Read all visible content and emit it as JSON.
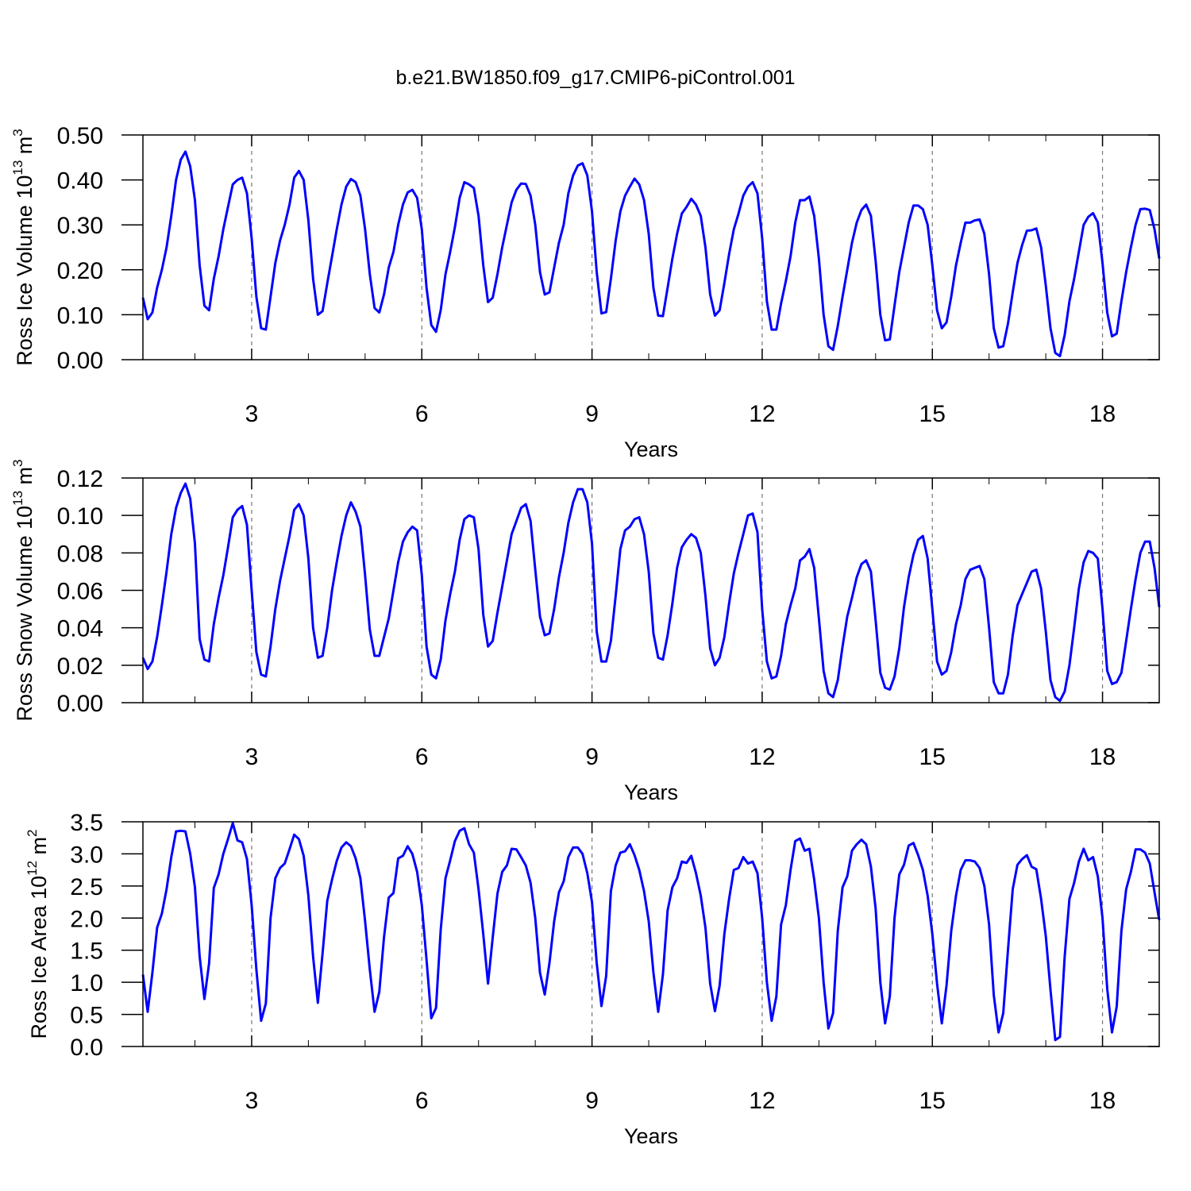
{
  "chart_data": {
    "type": "line",
    "title": "b.e21.BW1850.f09_g17.CMIP6-piControl.001",
    "xlabel": "Years",
    "xlim": [
      1.083,
      19
    ],
    "xticks": [
      3,
      6,
      9,
      12,
      15,
      18
    ],
    "xminorticks": [
      2,
      4,
      5,
      7,
      8,
      10,
      11,
      13,
      14,
      16,
      17
    ],
    "xgrid": "dashed",
    "color": "#0000ff",
    "x": [
      1.083,
      1.167,
      1.25,
      1.333,
      1.417,
      1.5,
      1.583,
      1.667,
      1.75,
      1.833,
      1.917,
      2,
      2.083,
      2.167,
      2.25,
      2.333,
      2.417,
      2.5,
      2.583,
      2.667,
      2.75,
      2.833,
      2.917,
      3,
      3.083,
      3.167,
      3.25,
      3.333,
      3.417,
      3.5,
      3.583,
      3.667,
      3.75,
      3.833,
      3.917,
      4,
      4.083,
      4.167,
      4.25,
      4.333,
      4.417,
      4.5,
      4.583,
      4.667,
      4.75,
      4.833,
      4.917,
      5,
      5.083,
      5.167,
      5.25,
      5.333,
      5.417,
      5.5,
      5.583,
      5.667,
      5.75,
      5.833,
      5.917,
      6,
      6.083,
      6.167,
      6.25,
      6.333,
      6.417,
      6.5,
      6.583,
      6.667,
      6.75,
      6.833,
      6.917,
      7,
      7.083,
      7.167,
      7.25,
      7.333,
      7.417,
      7.5,
      7.583,
      7.667,
      7.75,
      7.833,
      7.917,
      8,
      8.083,
      8.167,
      8.25,
      8.333,
      8.417,
      8.5,
      8.583,
      8.667,
      8.75,
      8.833,
      8.917,
      9,
      9.083,
      9.167,
      9.25,
      9.333,
      9.417,
      9.5,
      9.583,
      9.667,
      9.75,
      9.833,
      9.917,
      10,
      10.083,
      10.167,
      10.25,
      10.333,
      10.417,
      10.5,
      10.583,
      10.667,
      10.75,
      10.833,
      10.917,
      11,
      11.083,
      11.167,
      11.25,
      11.333,
      11.417,
      11.5,
      11.583,
      11.667,
      11.75,
      11.833,
      11.917,
      12,
      12.083,
      12.167,
      12.25,
      12.333,
      12.417,
      12.5,
      12.583,
      12.667,
      12.75,
      12.833,
      12.917,
      13,
      13.083,
      13.167,
      13.25,
      13.333,
      13.417,
      13.5,
      13.583,
      13.667,
      13.75,
      13.833,
      13.917,
      14,
      14.083,
      14.167,
      14.25,
      14.333,
      14.417,
      14.5,
      14.583,
      14.667,
      14.75,
      14.833,
      14.917,
      15,
      15.083,
      15.167,
      15.25,
      15.333,
      15.417,
      15.5,
      15.583,
      15.667,
      15.75,
      15.833,
      15.917,
      16,
      16.083,
      16.167,
      16.25,
      16.333,
      16.417,
      16.5,
      16.583,
      16.667,
      16.75,
      16.833,
      16.917,
      17,
      17.083,
      17.167,
      17.25,
      17.333,
      17.417,
      17.5,
      17.583,
      17.667,
      17.75,
      17.833,
      17.917,
      18,
      18.083,
      18.167,
      18.25,
      18.333,
      18.417,
      18.5,
      18.583,
      18.667,
      18.75,
      18.833,
      18.917,
      19
    ],
    "panels": [
      {
        "ylabel": [
          "Ross Ice Volume 10",
          "13",
          " m",
          "3"
        ],
        "ylim": [
          0,
          0.5
        ],
        "yticks": [
          {
            "value": 0,
            "label": "0.00"
          },
          {
            "value": 0.1,
            "label": "0.10"
          },
          {
            "value": 0.2,
            "label": "0.20"
          },
          {
            "value": 0.3,
            "label": "0.30"
          },
          {
            "value": 0.4,
            "label": "0.40"
          },
          {
            "value": 0.5,
            "label": "0.50"
          }
        ],
        "values": [
          0.138,
          0.09,
          0.105,
          0.16,
          0.2,
          0.25,
          0.32,
          0.4,
          0.445,
          0.463,
          0.43,
          0.355,
          0.21,
          0.12,
          0.11,
          0.18,
          0.23,
          0.29,
          0.34,
          0.39,
          0.4,
          0.405,
          0.37,
          0.27,
          0.14,
          0.07,
          0.067,
          0.14,
          0.215,
          0.265,
          0.3,
          0.345,
          0.405,
          0.42,
          0.4,
          0.31,
          0.18,
          0.1,
          0.108,
          0.17,
          0.23,
          0.29,
          0.345,
          0.385,
          0.402,
          0.395,
          0.365,
          0.29,
          0.19,
          0.115,
          0.105,
          0.145,
          0.205,
          0.24,
          0.3,
          0.345,
          0.372,
          0.378,
          0.36,
          0.29,
          0.16,
          0.077,
          0.062,
          0.11,
          0.19,
          0.24,
          0.295,
          0.36,
          0.395,
          0.39,
          0.382,
          0.32,
          0.21,
          0.128,
          0.138,
          0.19,
          0.25,
          0.3,
          0.35,
          0.378,
          0.392,
          0.391,
          0.365,
          0.3,
          0.195,
          0.145,
          0.15,
          0.205,
          0.26,
          0.3,
          0.37,
          0.41,
          0.432,
          0.437,
          0.41,
          0.33,
          0.195,
          0.103,
          0.106,
          0.18,
          0.265,
          0.33,
          0.365,
          0.385,
          0.403,
          0.39,
          0.355,
          0.28,
          0.16,
          0.098,
          0.097,
          0.16,
          0.225,
          0.28,
          0.325,
          0.34,
          0.358,
          0.345,
          0.32,
          0.25,
          0.145,
          0.098,
          0.11,
          0.17,
          0.235,
          0.29,
          0.325,
          0.365,
          0.385,
          0.395,
          0.37,
          0.27,
          0.13,
          0.067,
          0.067,
          0.125,
          0.175,
          0.23,
          0.305,
          0.355,
          0.355,
          0.363,
          0.32,
          0.225,
          0.1,
          0.03,
          0.022,
          0.075,
          0.14,
          0.2,
          0.26,
          0.305,
          0.333,
          0.345,
          0.32,
          0.22,
          0.1,
          0.043,
          0.045,
          0.12,
          0.195,
          0.25,
          0.305,
          0.343,
          0.343,
          0.335,
          0.3,
          0.21,
          0.11,
          0.07,
          0.083,
          0.14,
          0.21,
          0.26,
          0.305,
          0.305,
          0.31,
          0.312,
          0.28,
          0.19,
          0.07,
          0.027,
          0.03,
          0.08,
          0.15,
          0.215,
          0.255,
          0.287,
          0.288,
          0.292,
          0.25,
          0.165,
          0.07,
          0.015,
          0.008,
          0.055,
          0.13,
          0.18,
          0.24,
          0.3,
          0.318,
          0.326,
          0.305,
          0.215,
          0.105,
          0.052,
          0.058,
          0.13,
          0.195,
          0.25,
          0.3,
          0.335,
          0.336,
          0.333,
          0.29,
          0.225
        ]
      },
      {
        "ylabel": [
          "Ross Snow Volume 10",
          "13",
          " m",
          "3"
        ],
        "ylim": [
          0,
          0.12
        ],
        "yticks": [
          {
            "value": 0,
            "label": "0.00"
          },
          {
            "value": 0.02,
            "label": "0.02"
          },
          {
            "value": 0.04,
            "label": "0.04"
          },
          {
            "value": 0.06,
            "label": "0.06"
          },
          {
            "value": 0.08,
            "label": "0.08"
          },
          {
            "value": 0.1,
            "label": "0.10"
          },
          {
            "value": 0.12,
            "label": "0.12"
          }
        ],
        "values": [
          0.024,
          0.018,
          0.022,
          0.035,
          0.052,
          0.07,
          0.09,
          0.104,
          0.112,
          0.117,
          0.109,
          0.085,
          0.034,
          0.023,
          0.022,
          0.042,
          0.056,
          0.068,
          0.083,
          0.099,
          0.103,
          0.105,
          0.095,
          0.06,
          0.027,
          0.015,
          0.014,
          0.03,
          0.05,
          0.065,
          0.077,
          0.089,
          0.103,
          0.106,
          0.1,
          0.077,
          0.04,
          0.024,
          0.025,
          0.04,
          0.06,
          0.075,
          0.089,
          0.1,
          0.107,
          0.102,
          0.094,
          0.068,
          0.039,
          0.025,
          0.025,
          0.035,
          0.045,
          0.06,
          0.075,
          0.086,
          0.091,
          0.094,
          0.092,
          0.068,
          0.03,
          0.015,
          0.013,
          0.023,
          0.044,
          0.058,
          0.07,
          0.087,
          0.098,
          0.1,
          0.099,
          0.082,
          0.047,
          0.03,
          0.033,
          0.048,
          0.062,
          0.076,
          0.09,
          0.097,
          0.104,
          0.106,
          0.097,
          0.071,
          0.046,
          0.036,
          0.037,
          0.05,
          0.067,
          0.08,
          0.096,
          0.107,
          0.114,
          0.114,
          0.107,
          0.085,
          0.038,
          0.022,
          0.022,
          0.033,
          0.057,
          0.082,
          0.092,
          0.094,
          0.098,
          0.099,
          0.09,
          0.07,
          0.037,
          0.024,
          0.023,
          0.036,
          0.053,
          0.072,
          0.083,
          0.087,
          0.09,
          0.088,
          0.08,
          0.057,
          0.029,
          0.02,
          0.024,
          0.035,
          0.053,
          0.069,
          0.08,
          0.09,
          0.1,
          0.101,
          0.091,
          0.05,
          0.022,
          0.013,
          0.014,
          0.025,
          0.042,
          0.052,
          0.061,
          0.076,
          0.078,
          0.082,
          0.072,
          0.045,
          0.017,
          0.005,
          0.003,
          0.012,
          0.03,
          0.046,
          0.056,
          0.067,
          0.074,
          0.076,
          0.07,
          0.044,
          0.016,
          0.008,
          0.007,
          0.014,
          0.029,
          0.051,
          0.067,
          0.079,
          0.087,
          0.089,
          0.077,
          0.05,
          0.022,
          0.015,
          0.017,
          0.027,
          0.042,
          0.052,
          0.066,
          0.071,
          0.072,
          0.073,
          0.066,
          0.04,
          0.011,
          0.005,
          0.005,
          0.015,
          0.036,
          0.052,
          0.058,
          0.064,
          0.07,
          0.071,
          0.061,
          0.038,
          0.012,
          0.003,
          0.001,
          0.006,
          0.02,
          0.04,
          0.061,
          0.075,
          0.081,
          0.08,
          0.077,
          0.05,
          0.017,
          0.01,
          0.011,
          0.016,
          0.033,
          0.05,
          0.066,
          0.08,
          0.086,
          0.086,
          0.072,
          0.051
        ]
      },
      {
        "ylabel": [
          "Ross Ice Area 10",
          "12",
          " m",
          "2"
        ],
        "ylim": [
          0,
          3.5
        ],
        "yticks": [
          {
            "value": 0,
            "label": "0.0"
          },
          0.5,
          {
            "value": 1,
            "label": "1.0"
          },
          1.5,
          {
            "value": 2,
            "label": "2.0"
          },
          2.5,
          {
            "value": 3,
            "label": "3.0"
          },
          3.5
        ],
        "values": [
          1.12,
          0.54,
          1.15,
          1.85,
          2.07,
          2.45,
          2.95,
          3.35,
          3.36,
          3.35,
          3.0,
          2.48,
          1.4,
          0.74,
          1.3,
          2.47,
          2.68,
          3.0,
          3.23,
          3.48,
          3.21,
          3.18,
          2.92,
          2.2,
          1.2,
          0.4,
          0.67,
          2.0,
          2.62,
          2.78,
          2.85,
          3.07,
          3.3,
          3.23,
          2.97,
          2.35,
          1.4,
          0.68,
          1.45,
          2.27,
          2.6,
          2.89,
          3.1,
          3.18,
          3.12,
          2.93,
          2.62,
          1.95,
          1.2,
          0.54,
          0.85,
          1.7,
          2.32,
          2.39,
          2.93,
          2.97,
          3.12,
          3.0,
          2.72,
          2.2,
          1.35,
          0.44,
          0.6,
          1.82,
          2.62,
          2.9,
          3.2,
          3.36,
          3.4,
          3.15,
          3.02,
          2.45,
          1.75,
          0.98,
          1.7,
          2.38,
          2.72,
          2.82,
          3.08,
          3.07,
          2.95,
          2.82,
          2.55,
          2.0,
          1.15,
          0.81,
          1.3,
          1.95,
          2.4,
          2.57,
          2.95,
          3.1,
          3.1,
          3.0,
          2.7,
          2.25,
          1.3,
          0.63,
          1.1,
          2.42,
          2.82,
          3.02,
          3.04,
          3.15,
          2.98,
          2.75,
          2.42,
          1.95,
          1.15,
          0.54,
          1.12,
          2.12,
          2.48,
          2.62,
          2.88,
          2.86,
          2.97,
          2.7,
          2.35,
          1.85,
          0.98,
          0.55,
          0.95,
          1.75,
          2.3,
          2.75,
          2.78,
          2.95,
          2.85,
          2.88,
          2.7,
          2.0,
          1.0,
          0.4,
          0.78,
          1.9,
          2.2,
          2.75,
          3.2,
          3.24,
          3.05,
          3.08,
          2.6,
          2.0,
          1.0,
          0.28,
          0.52,
          1.8,
          2.48,
          2.65,
          3.05,
          3.15,
          3.22,
          3.15,
          2.8,
          2.15,
          1.0,
          0.36,
          0.78,
          2.0,
          2.68,
          2.83,
          3.13,
          3.17,
          2.98,
          2.75,
          2.35,
          1.75,
          0.98,
          0.36,
          0.95,
          1.8,
          2.35,
          2.75,
          2.9,
          2.9,
          2.88,
          2.78,
          2.5,
          1.9,
          0.8,
          0.22,
          0.52,
          1.5,
          2.45,
          2.83,
          2.92,
          2.98,
          2.8,
          2.76,
          2.3,
          1.72,
          0.88,
          0.1,
          0.15,
          1.4,
          2.3,
          2.55,
          2.88,
          3.08,
          2.9,
          2.95,
          2.65,
          2.0,
          0.9,
          0.22,
          0.62,
          1.8,
          2.45,
          2.72,
          3.07,
          3.07,
          3.02,
          2.85,
          2.4,
          1.97
        ]
      }
    ]
  }
}
